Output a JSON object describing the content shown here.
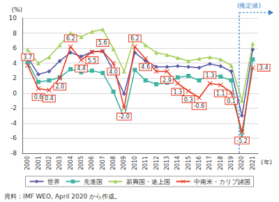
{
  "chart_data": {
    "type": "line",
    "y_label": "(%)",
    "x_label": "(年)",
    "annotation": {
      "text": "(推定値)",
      "from": "2020"
    },
    "source": "資料：IMF WEO, April 2020 から作成。",
    "categories": [
      "2000",
      "2001",
      "2002",
      "2003",
      "2004",
      "2005",
      "2006",
      "2007",
      "2008",
      "2009",
      "2010",
      "2011",
      "2012",
      "2013",
      "2014",
      "2015",
      "2016",
      "2017",
      "2018",
      "2019",
      "2020",
      "2021"
    ],
    "ylim": [
      -8,
      10
    ],
    "yticks": [
      -8,
      -6,
      -4,
      -2,
      0,
      2,
      4,
      6,
      8,
      10
    ],
    "grid": true,
    "legend": "bottom",
    "series": [
      {
        "name": "世界",
        "color": "#5a5aa8",
        "marker": "diamond",
        "values": [
          4.8,
          2.5,
          2.9,
          4.3,
          5.4,
          4.9,
          5.5,
          5.6,
          3.0,
          -0.1,
          5.4,
          4.3,
          3.5,
          3.5,
          3.6,
          3.5,
          3.4,
          3.9,
          3.6,
          2.9,
          -3.0,
          5.8
        ]
      },
      {
        "name": "先進国",
        "color": "#3db3a0",
        "marker": "square",
        "values": [
          4.1,
          1.5,
          1.7,
          2.1,
          3.2,
          2.8,
          3.0,
          2.7,
          0.2,
          -3.3,
          3.1,
          1.7,
          1.2,
          1.4,
          2.1,
          2.3,
          1.7,
          2.5,
          2.2,
          1.7,
          -6.1,
          4.5
        ]
      },
      {
        "name": "新興国・途上国",
        "color": "#a5cf5a",
        "marker": "triangle",
        "values": [
          5.8,
          4.0,
          4.8,
          6.4,
          8.0,
          7.5,
          8.2,
          8.5,
          5.9,
          2.9,
          7.5,
          6.4,
          5.4,
          5.1,
          4.7,
          4.3,
          4.6,
          4.8,
          4.5,
          3.7,
          -1.0,
          6.6
        ]
      },
      {
        "name": "中南米・カリブ諸国",
        "color": "#e8381f",
        "marker": "x",
        "data_labels": true,
        "values": [
          3.7,
          0.6,
          0.4,
          2.0,
          6.2,
          4.4,
          5.5,
          5.6,
          4.0,
          -2.0,
          6.2,
          4.6,
          2.9,
          2.9,
          1.3,
          0.3,
          -0.6,
          1.3,
          1.1,
          0.1,
          -5.2,
          3.4
        ],
        "value_labels": [
          "3.7",
          "0.6",
          "0.4",
          "2.0",
          "6.2",
          "4.4",
          "5.5",
          "5.6",
          "4.0",
          "-2.0",
          "6.2",
          "4.6",
          null,
          "2.9",
          "1.3",
          "0.3",
          "-0.6",
          "1.3",
          "1.1",
          "0.1",
          "-5.2",
          "3.4"
        ]
      }
    ]
  }
}
